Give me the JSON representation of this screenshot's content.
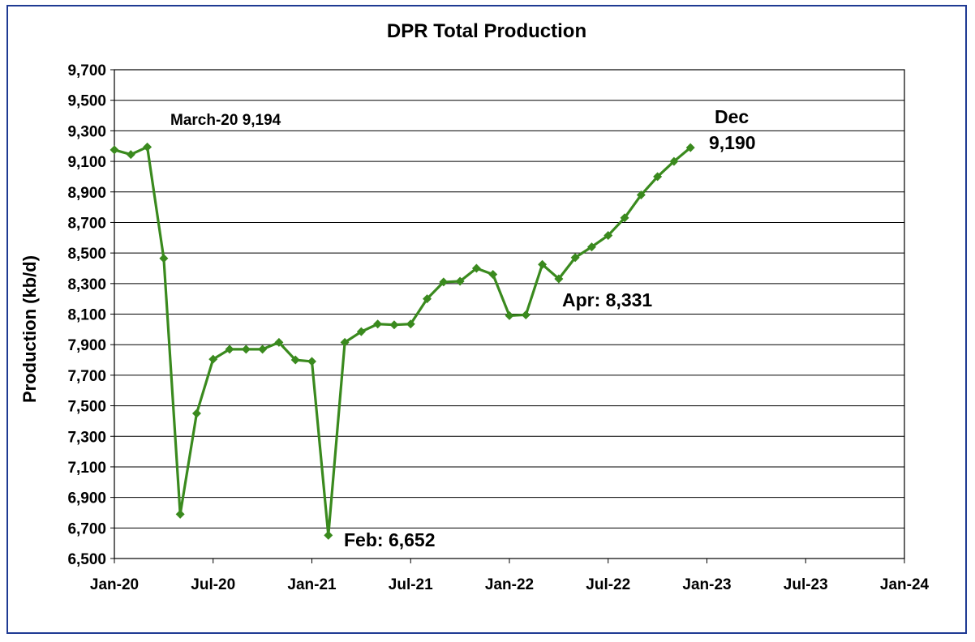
{
  "chart_data": {
    "type": "line",
    "title": "DPR Total  Production",
    "ylabel": "Production (kb/d)",
    "xlabel": "",
    "ylim": [
      6500,
      9700
    ],
    "yticks": [
      6500,
      6700,
      6900,
      7100,
      7300,
      7500,
      7700,
      7900,
      8100,
      8300,
      8500,
      8700,
      8900,
      9100,
      9300,
      9500,
      9700
    ],
    "ytick_labels": [
      "6,500",
      "6,700",
      "6,900",
      "7,100",
      "7,300",
      "7,500",
      "7,700",
      "7,900",
      "8,100",
      "8,300",
      "8,500",
      "8,700",
      "8,900",
      "9,100",
      "9,300",
      "9,500",
      "9,700"
    ],
    "xlim": [
      "2020-01",
      "2024-01"
    ],
    "xticks": [
      "2020-01",
      "2020-07",
      "2021-01",
      "2021-07",
      "2022-01",
      "2022-07",
      "2023-01",
      "2023-07",
      "2024-01"
    ],
    "xtick_labels": [
      "Jan-20",
      "Jul-20",
      "Jan-21",
      "Jul-21",
      "Jan-22",
      "Jul-22",
      "Jan-23",
      "Jul-23",
      "Jan-24"
    ],
    "grid": true,
    "line_color": "#3a8a1e",
    "series": [
      {
        "name": "",
        "points": [
          {
            "x": "2020-01",
            "y": 9175
          },
          {
            "x": "2020-02",
            "y": 9145
          },
          {
            "x": "2020-03",
            "y": 9194
          },
          {
            "x": "2020-04",
            "y": 8465
          },
          {
            "x": "2020-05",
            "y": 6790
          },
          {
            "x": "2020-06",
            "y": 7450
          },
          {
            "x": "2020-07",
            "y": 7805
          },
          {
            "x": "2020-08",
            "y": 7870
          },
          {
            "x": "2020-09",
            "y": 7870
          },
          {
            "x": "2020-10",
            "y": 7870
          },
          {
            "x": "2020-11",
            "y": 7915
          },
          {
            "x": "2020-12",
            "y": 7800
          },
          {
            "x": "2021-01",
            "y": 7790
          },
          {
            "x": "2021-02",
            "y": 6652
          },
          {
            "x": "2021-03",
            "y": 7915
          },
          {
            "x": "2021-04",
            "y": 7985
          },
          {
            "x": "2021-05",
            "y": 8035
          },
          {
            "x": "2021-06",
            "y": 8030
          },
          {
            "x": "2021-07",
            "y": 8035
          },
          {
            "x": "2021-08",
            "y": 8200
          },
          {
            "x": "2021-09",
            "y": 8310
          },
          {
            "x": "2021-10",
            "y": 8315
          },
          {
            "x": "2021-11",
            "y": 8400
          },
          {
            "x": "2021-12",
            "y": 8360
          },
          {
            "x": "2022-01",
            "y": 8090
          },
          {
            "x": "2022-02",
            "y": 8095
          },
          {
            "x": "2022-03",
            "y": 8425
          },
          {
            "x": "2022-04",
            "y": 8331
          },
          {
            "x": "2022-05",
            "y": 8470
          },
          {
            "x": "2022-06",
            "y": 8540
          },
          {
            "x": "2022-07",
            "y": 8615
          },
          {
            "x": "2022-08",
            "y": 8730
          },
          {
            "x": "2022-09",
            "y": 8880
          },
          {
            "x": "2022-10",
            "y": 9000
          },
          {
            "x": "2022-11",
            "y": 9100
          },
          {
            "x": "2022-12",
            "y": 9190
          }
        ]
      }
    ],
    "annotations": [
      {
        "id": "march",
        "text": "March-20 9,194"
      },
      {
        "id": "feb",
        "text": "Feb: 6,652"
      },
      {
        "id": "apr",
        "text": "Apr: 8,331"
      },
      {
        "id": "dec_label",
        "text": "Dec"
      },
      {
        "id": "dec_value",
        "text": "9,190"
      }
    ]
  }
}
